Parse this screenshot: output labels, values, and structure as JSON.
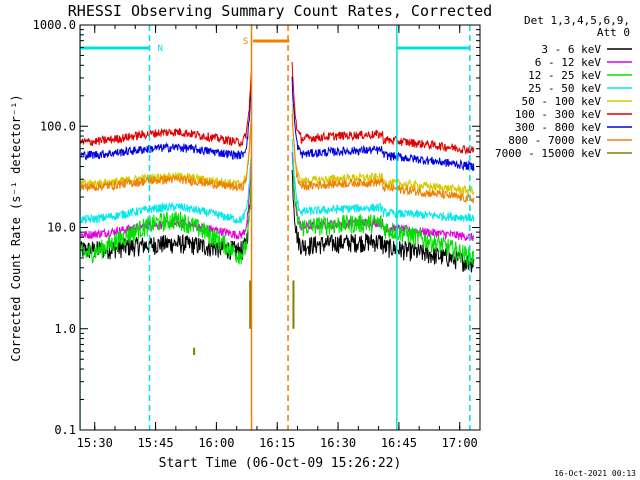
{
  "chart_data": {
    "type": "line",
    "title": "RHESSI Observing Summary Count Rates, Corrected",
    "xlabel": "Start Time (06-Oct-09 15:26:22)",
    "ylabel": "Corrected Count Rate (s⁻¹ detector⁻¹)",
    "yscale": "log",
    "ylim": [
      0.1,
      1000
    ],
    "xlim": [
      "15:26:22",
      "17:05:00"
    ],
    "x_ticks": [
      "15:30",
      "15:45",
      "16:00",
      "16:15",
      "16:30",
      "16:45",
      "17:00"
    ],
    "y_ticks": [
      "0.1",
      "1.0",
      "10.0",
      "100.0",
      "1000.0"
    ],
    "legend": {
      "position": "top-right",
      "header": [
        "Det 1,3,4,5,6,9,",
        "Att 0"
      ]
    },
    "series": [
      {
        "name": "3 - 6 keV",
        "color": "#000000",
        "levels": [
          6.0,
          7.0,
          6.5,
          4.5
        ]
      },
      {
        "name": "6 - 12 keV",
        "color": "#e000e0",
        "levels": [
          8.5,
          11.0,
          10.0,
          8.0
        ]
      },
      {
        "name": "12 - 25 keV",
        "color": "#00e000",
        "levels": [
          5.5,
          12.0,
          10.0,
          5.0
        ]
      },
      {
        "name": "25 - 50 keV",
        "color": "#00e8e8",
        "levels": [
          12.0,
          16.0,
          14.0,
          12.5
        ]
      },
      {
        "name": "50 - 100 keV",
        "color": "#d8c800",
        "levels": [
          27.0,
          32.0,
          28.0,
          23.0
        ]
      },
      {
        "name": "100 - 300 keV",
        "color": "#e00000",
        "levels": [
          70.0,
          88.0,
          74.0,
          58.0
        ]
      },
      {
        "name": "300 - 800 keV",
        "color": "#0000e0",
        "levels": [
          52.0,
          62.0,
          52.0,
          40.0
        ]
      },
      {
        "name": "800 - 7000 keV",
        "color": "#f08000",
        "levels": [
          25.0,
          30.0,
          25.0,
          19.0
        ]
      },
      {
        "name": "7000 - 15000 keV",
        "color": "#808000",
        "levels": [
          0.6,
          1.5,
          0.0,
          0.0
        ]
      }
    ],
    "flags": [
      {
        "label": "N",
        "color": "#00e0e0",
        "ranges": [
          [
            "15:26:22",
            "15:43:30"
          ],
          [
            "16:44:30",
            "17:02:30"
          ]
        ]
      },
      {
        "label": "S",
        "color": "#f08000",
        "ranges": [
          [
            "16:09:00",
            "16:18:00"
          ]
        ]
      }
    ],
    "vlines": [
      {
        "time": "15:26:22",
        "color": "#00e0e0",
        "style": "solid"
      },
      {
        "time": "15:43:30",
        "color": "#00e0e0",
        "style": "dashed"
      },
      {
        "time": "16:08:40",
        "color": "#f08000",
        "style": "solid"
      },
      {
        "time": "16:17:40",
        "color": "#f08000",
        "style": "dashed"
      },
      {
        "time": "16:44:30",
        "color": "#00e0e0",
        "style": "solid"
      },
      {
        "time": "17:02:30",
        "color": "#00e0e0",
        "style": "dashed"
      }
    ],
    "gap": [
      "16:08:40",
      "16:18:40"
    ]
  },
  "footer": {
    "timestamp": "16-Oct-2021 00:13"
  }
}
